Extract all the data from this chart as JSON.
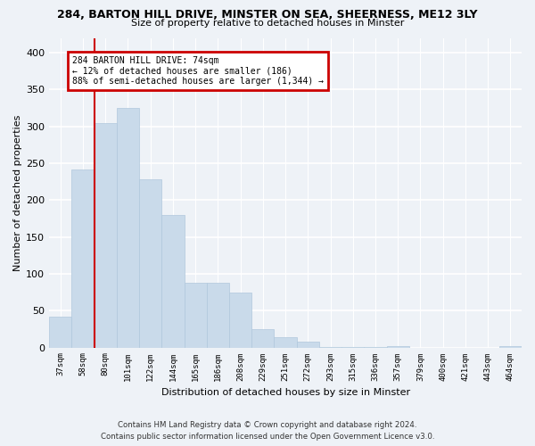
{
  "title": "284, BARTON HILL DRIVE, MINSTER ON SEA, SHEERNESS, ME12 3LY",
  "subtitle": "Size of property relative to detached houses in Minster",
  "xlabel": "Distribution of detached houses by size in Minster",
  "ylabel": "Number of detached properties",
  "categories": [
    "37sqm",
    "58sqm",
    "80sqm",
    "101sqm",
    "122sqm",
    "144sqm",
    "165sqm",
    "186sqm",
    "208sqm",
    "229sqm",
    "251sqm",
    "272sqm",
    "293sqm",
    "315sqm",
    "336sqm",
    "357sqm",
    "379sqm",
    "400sqm",
    "421sqm",
    "443sqm",
    "464sqm"
  ],
  "values": [
    42,
    242,
    305,
    325,
    228,
    180,
    88,
    88,
    74,
    25,
    14,
    8,
    1,
    1,
    1,
    2,
    0,
    0,
    0,
    0,
    2
  ],
  "bar_color": "#c9daea",
  "bar_edge_color": "#b0c8dc",
  "annotation_title": "284 BARTON HILL DRIVE: 74sqm",
  "annotation_line1": "← 12% of detached houses are smaller (186)",
  "annotation_line2": "88% of semi-detached houses are larger (1,344) →",
  "annotation_box_color": "#ffffff",
  "annotation_box_edge_color": "#cc0000",
  "vline_color": "#cc0000",
  "vline_x_index": 1,
  "background_color": "#eef2f7",
  "plot_background": "#eef2f7",
  "grid_color": "#ffffff",
  "ylim": [
    0,
    420
  ],
  "yticks": [
    0,
    50,
    100,
    150,
    200,
    250,
    300,
    350,
    400
  ],
  "footer_line1": "Contains HM Land Registry data © Crown copyright and database right 2024.",
  "footer_line2": "Contains public sector information licensed under the Open Government Licence v3.0."
}
